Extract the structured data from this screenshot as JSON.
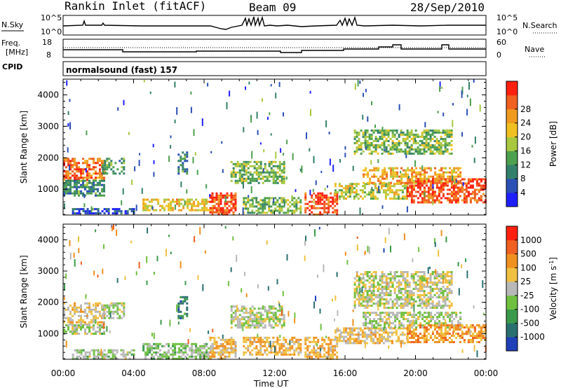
{
  "header": {
    "station": "Rankin Inlet (fitACF)",
    "beam": "Beam 09",
    "date": "28/Sep/2010"
  },
  "strip": {
    "nsky_label": "N.Sky",
    "nsky_tick_top": "10^5",
    "nsky_tick_bottom": "10^0",
    "nsearch_label": "N.Search",
    "nsearch_tick_top": "10^5",
    "nsearch_tick_bottom": "10^0",
    "freq_label_1": "Freq.",
    "freq_label_2": "[MHz]",
    "freq_tick_top": "18",
    "freq_tick_bottom": "8",
    "nave_label": "Nave",
    "nave_tick_top": "60",
    "nave_tick_bottom": "0",
    "cpid_label": "CPID",
    "cpid_text": "normalsound (fast) 157"
  },
  "axes": {
    "x_ticks": [
      "00:00",
      "04:00",
      "08:00",
      "12:00",
      "16:00",
      "20:00",
      "00:00"
    ],
    "xlabel": "Time UT",
    "ylabel": "Slant Range [km]",
    "y_ticks": [
      "1000",
      "2000",
      "3000",
      "4000"
    ]
  },
  "colorbars": {
    "power": {
      "label": "Power [dB]",
      "ticks": [
        "4",
        "8",
        "12",
        "16",
        "20",
        "24",
        "28"
      ],
      "colors": [
        "#2020ff",
        "#2a4fb5",
        "#33806a",
        "#4da04d",
        "#a8c840",
        "#f0c020",
        "#f09a20",
        "#f06020",
        "#ff2010"
      ]
    },
    "velocity": {
      "label": "Velocity [m s^-1]",
      "ticks": [
        "1000",
        "500",
        "100",
        "25",
        "-25",
        "-100",
        "-500",
        "-1000"
      ],
      "colors": [
        "#2040b8",
        "#2a7070",
        "#3a9a4a",
        "#70c040",
        "#b8b8b8",
        "#f0c040",
        "#f09020",
        "#f06020",
        "#ff2010"
      ]
    }
  },
  "chart_data": [
    {
      "type": "heatmap",
      "title": "Power",
      "xlabel": "Time UT",
      "ylabel": "Slant Range [km]",
      "xlim": [
        "00:00",
        "24:00"
      ],
      "ylim": [
        180,
        4500
      ],
      "colorbar": {
        "label": "Power [dB]",
        "range": [
          0,
          32
        ]
      },
      "echo_regions": [
        {
          "t_start": 0.0,
          "t_end": 2.3,
          "range_start": 1300,
          "range_end": 2000,
          "value": 26
        },
        {
          "t_start": 0.0,
          "t_end": 2.3,
          "range_start": 800,
          "range_end": 1300,
          "value": 10
        },
        {
          "t_start": 2.2,
          "t_end": 3.4,
          "range_start": 1500,
          "range_end": 2000,
          "value": 12
        },
        {
          "t_start": 4.5,
          "t_end": 8.5,
          "range_start": 300,
          "range_end": 700,
          "value": 20
        },
        {
          "t_start": 6.5,
          "t_end": 7.0,
          "range_start": 1500,
          "range_end": 2200,
          "value": 10
        },
        {
          "t_start": 8.3,
          "t_end": 9.8,
          "range_start": 200,
          "range_end": 900,
          "value": 28
        },
        {
          "t_start": 9.5,
          "t_end": 12.5,
          "range_start": 1200,
          "range_end": 1900,
          "value": 14
        },
        {
          "t_start": 10.2,
          "t_end": 13.5,
          "range_start": 250,
          "range_end": 750,
          "value": 14
        },
        {
          "t_start": 13.7,
          "t_end": 15.6,
          "range_start": 200,
          "range_end": 900,
          "value": 28
        },
        {
          "t_start": 15.4,
          "t_end": 19.5,
          "range_start": 700,
          "range_end": 1200,
          "value": 18
        },
        {
          "t_start": 16.5,
          "t_end": 22.0,
          "range_start": 2100,
          "range_end": 2900,
          "value": 14
        },
        {
          "t_start": 17.0,
          "t_end": 22.5,
          "range_start": 1200,
          "range_end": 1700,
          "value": 22
        },
        {
          "t_start": 19.5,
          "t_end": 24.0,
          "range_start": 550,
          "range_end": 1350,
          "value": 28
        },
        {
          "t_start": 0.5,
          "t_end": 4.0,
          "range_start": 200,
          "range_end": 400,
          "value": 6
        }
      ]
    },
    {
      "type": "heatmap",
      "title": "Velocity",
      "xlabel": "Time UT",
      "ylabel": "Slant Range [km]",
      "xlim": [
        "00:00",
        "24:00"
      ],
      "ylim": [
        180,
        4500
      ],
      "colorbar": {
        "label": "Velocity [m s^-1]",
        "range": [
          -1000,
          1000
        ]
      },
      "echo_regions": [
        {
          "t_start": 0.0,
          "t_end": 2.3,
          "range_start": 1300,
          "range_end": 2000,
          "value": -150
        },
        {
          "t_start": 0.0,
          "t_end": 2.3,
          "range_start": 1000,
          "range_end": 1300,
          "value": 100
        },
        {
          "t_start": 2.2,
          "t_end": 3.4,
          "range_start": 1500,
          "range_end": 2000,
          "value": 80
        },
        {
          "t_start": 4.5,
          "t_end": 8.5,
          "range_start": 200,
          "range_end": 700,
          "value": 150
        },
        {
          "t_start": 6.5,
          "t_end": 7.0,
          "range_start": 1500,
          "range_end": 2200,
          "value": 600
        },
        {
          "t_start": 8.3,
          "t_end": 9.8,
          "range_start": 200,
          "range_end": 900,
          "value": -250
        },
        {
          "t_start": 9.5,
          "t_end": 12.5,
          "range_start": 1200,
          "range_end": 1900,
          "value": 60
        },
        {
          "t_start": 10.2,
          "t_end": 13.5,
          "range_start": 300,
          "range_end": 900,
          "value": -300
        },
        {
          "t_start": 13.7,
          "t_end": 15.6,
          "range_start": 200,
          "range_end": 900,
          "value": -300
        },
        {
          "t_start": 15.4,
          "t_end": 19.5,
          "range_start": 700,
          "range_end": 1200,
          "value": -200
        },
        {
          "t_start": 16.5,
          "t_end": 22.0,
          "range_start": 1800,
          "range_end": 3000,
          "value": 0
        },
        {
          "t_start": 17.0,
          "t_end": 22.5,
          "range_start": 1200,
          "range_end": 1700,
          "value": 40
        },
        {
          "t_start": 19.5,
          "t_end": 24.0,
          "range_start": 700,
          "range_end": 1300,
          "value": -400
        },
        {
          "t_start": 0.5,
          "t_end": 4.0,
          "range_start": 200,
          "range_end": 500,
          "value": 120
        }
      ]
    }
  ]
}
